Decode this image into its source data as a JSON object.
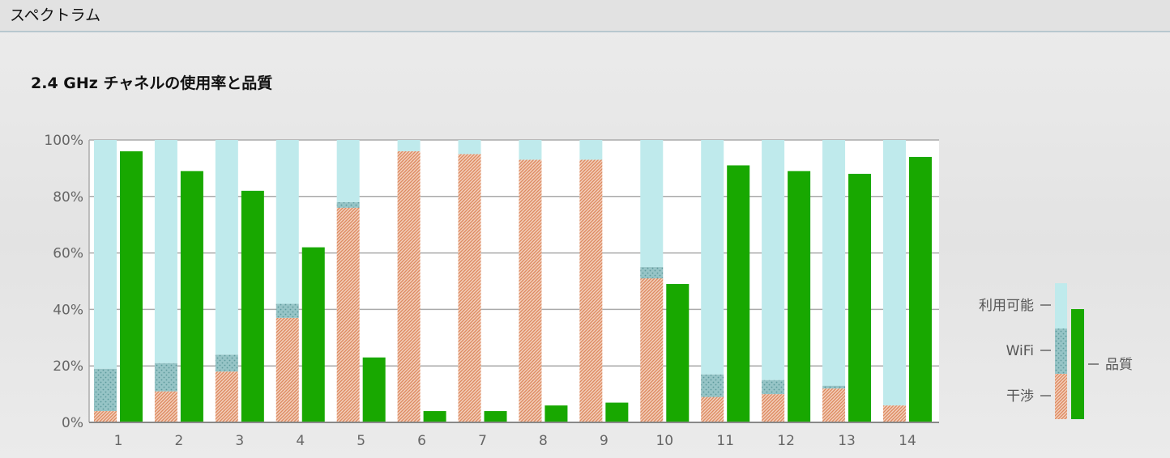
{
  "panel": {
    "title": "スペクトラム"
  },
  "chart_data": {
    "type": "bar",
    "title": "2.4 GHz チャネルの使用率と品質",
    "categories": [
      "1",
      "2",
      "3",
      "4",
      "5",
      "6",
      "7",
      "8",
      "9",
      "10",
      "11",
      "12",
      "13",
      "14"
    ],
    "ylim": [
      0,
      100
    ],
    "yticks": [
      "0%",
      "20%",
      "40%",
      "60%",
      "80%",
      "100%"
    ],
    "grid": true,
    "legend_placement": "right",
    "series": [
      {
        "name": "干渉",
        "values": [
          4,
          11,
          18,
          37,
          76,
          96,
          95,
          93,
          93,
          51,
          9,
          10,
          12,
          6
        ]
      },
      {
        "name": "WiFi",
        "values": [
          15,
          10,
          6,
          5,
          2,
          0,
          0,
          0,
          0,
          4,
          8,
          5,
          1,
          0
        ]
      },
      {
        "name": "利用可能",
        "values": [
          81,
          79,
          76,
          58,
          22,
          4,
          5,
          7,
          7,
          45,
          83,
          85,
          87,
          94
        ]
      },
      {
        "name": "品質",
        "values": [
          96,
          89,
          82,
          62,
          23,
          4,
          4,
          6,
          7,
          49,
          91,
          89,
          88,
          94
        ]
      }
    ],
    "colors": {
      "available": "#bfeaec",
      "wifi": "#8fbfbf",
      "interference": "#e79a72",
      "quality": "#18a800"
    }
  }
}
